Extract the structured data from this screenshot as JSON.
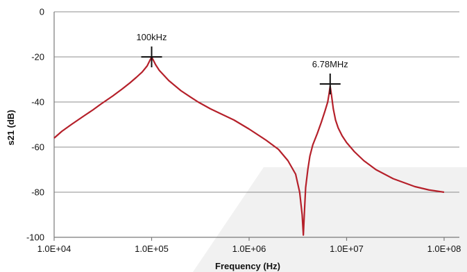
{
  "chart_data": {
    "type": "line",
    "title": "",
    "xlabel": "Frequency (Hz)",
    "ylabel": "s21 (dB)",
    "x_scale": "log",
    "xlim": [
      10000,
      100000000
    ],
    "ylim": [
      -100,
      0
    ],
    "x_ticks": [
      10000,
      100000,
      1000000,
      10000000,
      100000000
    ],
    "x_tick_labels": [
      "1.0E+04",
      "1.0E+05",
      "1.0E+06",
      "1.0E+07",
      "1.0E+08"
    ],
    "y_ticks": [
      0,
      -20,
      -40,
      -60,
      -80,
      -100
    ],
    "y_tick_labels": [
      "0",
      "-20",
      "-40",
      "-60",
      "-80",
      "-100"
    ],
    "grid": "horizontal",
    "colors": {
      "series": "#b5202a",
      "grid": "#8c8c8c",
      "marker": "#111111"
    },
    "series": [
      {
        "x": [
          10000,
          12000,
          15000,
          20000,
          25000,
          30000,
          40000,
          50000,
          60000,
          70000,
          80000,
          90000,
          100000,
          110000,
          120000,
          150000,
          200000,
          250000,
          300000,
          400000,
          500000,
          700000,
          1000000,
          1500000,
          2000000,
          2500000,
          3000000,
          3300000,
          3500000,
          3600000,
          3700000,
          3800000,
          4000000,
          4200000,
          4500000,
          5000000,
          5500000,
          6000000,
          6400000,
          6600000,
          6780000,
          7000000,
          7300000,
          7700000,
          8200000,
          9000000,
          10000000,
          12000000,
          15000000,
          20000000,
          30000000,
          50000000,
          70000000,
          100000000
        ],
        "y": [
          -56,
          -53,
          -50,
          -46.3,
          -43.5,
          -41,
          -37.3,
          -34.2,
          -31.5,
          -29,
          -26.7,
          -24,
          -20,
          -23.5,
          -26,
          -30.5,
          -35,
          -37.8,
          -40,
          -43,
          -45,
          -48,
          -52,
          -57,
          -61,
          -66,
          -72,
          -80,
          -90,
          -99,
          -88,
          -78,
          -70,
          -64,
          -59,
          -54,
          -49,
          -44,
          -40,
          -36.5,
          -33,
          -37,
          -43,
          -48,
          -51.5,
          -55,
          -58,
          -62,
          -66,
          -70,
          -74,
          -77.5,
          -79,
          -80
        ]
      }
    ],
    "annotations": [
      {
        "text": "100kHz",
        "x": 100000,
        "y": -20
      },
      {
        "text": "6.78MHz",
        "x": 6780000,
        "y": -32
      }
    ]
  }
}
